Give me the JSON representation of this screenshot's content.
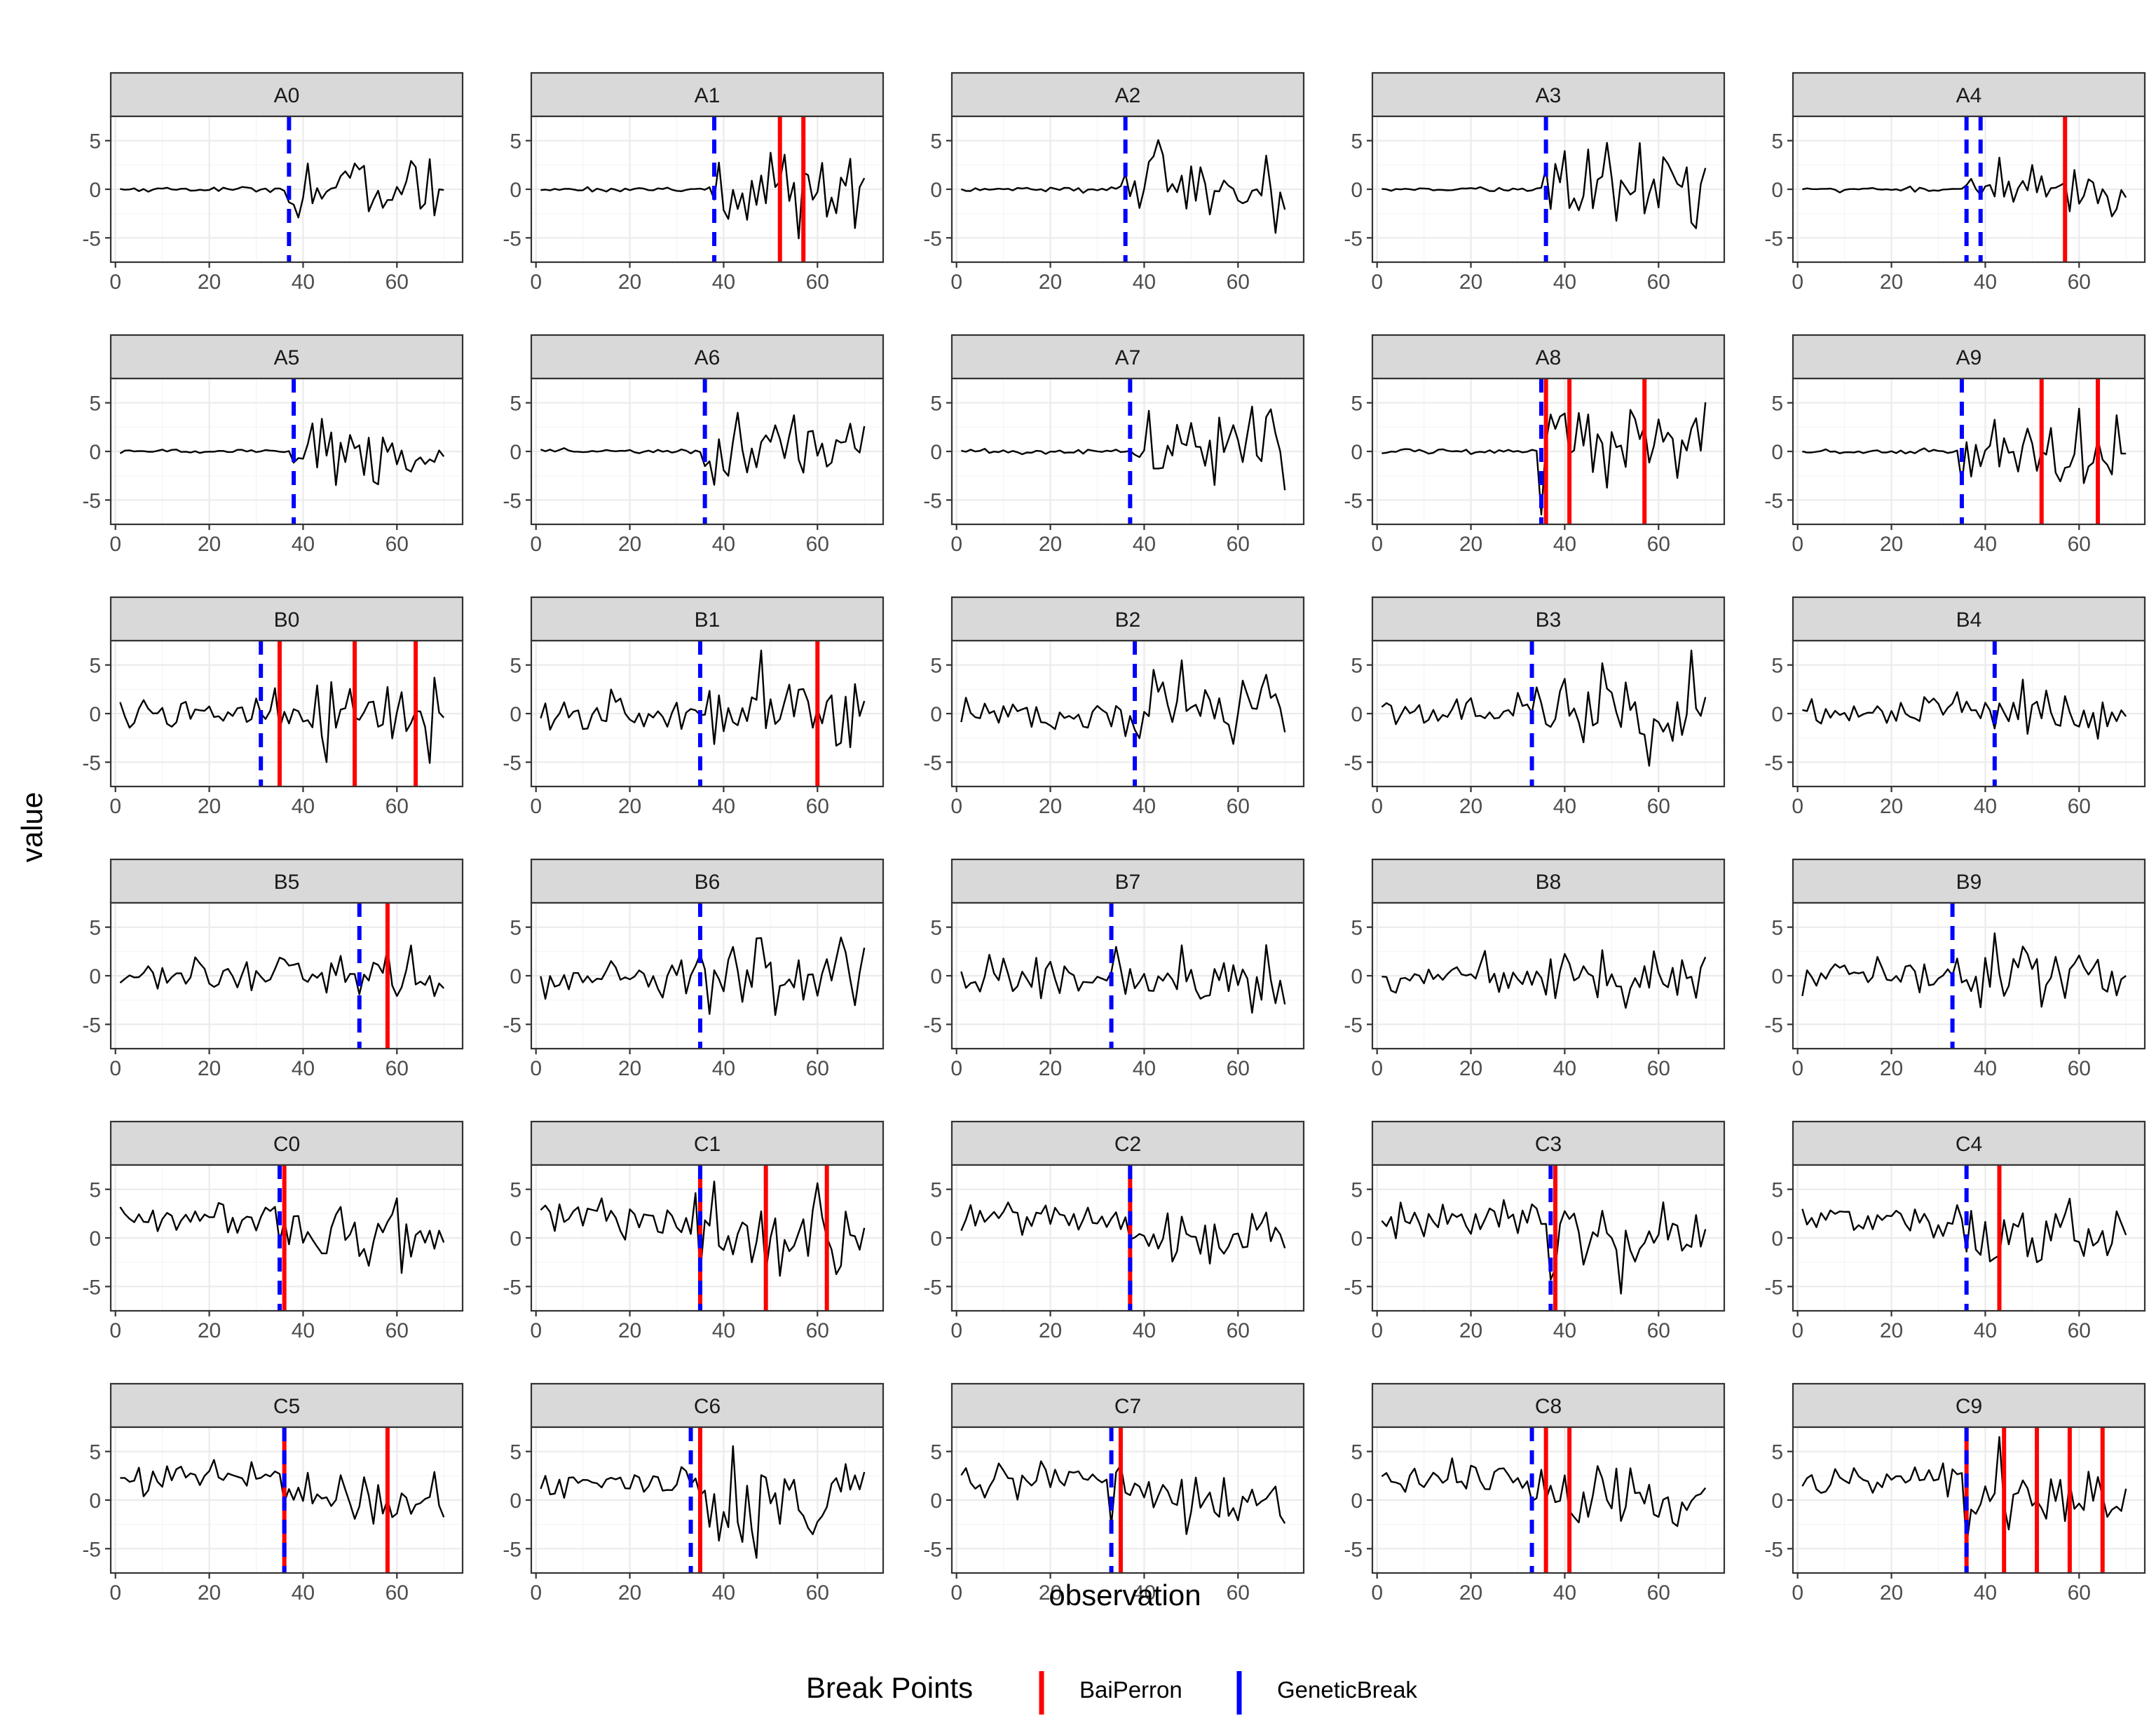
{
  "chart_data": {
    "type": "line",
    "layout": "facet_wrap",
    "facet_columns": 5,
    "xlabel": "observation",
    "ylabel": "value",
    "xlim": [
      -1,
      74
    ],
    "ylim": [
      -7.5,
      7.5
    ],
    "xticks": [
      0,
      20,
      40,
      60
    ],
    "yticks": [
      -5,
      0,
      5
    ],
    "legend": {
      "title": "Break Points",
      "position": "bottom",
      "entries": [
        {
          "name": "BaiPerron",
          "color": "#ff0000",
          "linetype": "solid"
        },
        {
          "name": "GeneticBreak",
          "color": "#0000ff",
          "linetype": "dashed"
        }
      ]
    },
    "panels": [
      {
        "name": "A0",
        "regime": "flat-then-volatile",
        "change": 37,
        "pre_sd": 0.12,
        "post_sd": 1.7,
        "baiperron": [],
        "geneticbreak": [
          37
        ]
      },
      {
        "name": "A1",
        "regime": "flat-then-volatile",
        "change": 38,
        "pre_sd": 0.12,
        "post_sd": 1.9,
        "baiperron": [
          52,
          57
        ],
        "geneticbreak": [
          38
        ]
      },
      {
        "name": "A2",
        "regime": "flat-then-volatile",
        "change": 36,
        "pre_sd": 0.12,
        "post_sd": 2.0,
        "baiperron": [],
        "geneticbreak": [
          36
        ]
      },
      {
        "name": "A3",
        "regime": "flat-then-volatile",
        "change": 36,
        "pre_sd": 0.12,
        "post_sd": 2.0,
        "baiperron": [],
        "geneticbreak": [
          36
        ]
      },
      {
        "name": "A4",
        "regime": "flat-then-volatile",
        "change": 36,
        "pre_sd": 0.12,
        "post_sd": 1.4,
        "baiperron": [
          57
        ],
        "geneticbreak": [
          36,
          39
        ]
      },
      {
        "name": "A5",
        "regime": "flat-then-volatile",
        "change": 38,
        "pre_sd": 0.12,
        "post_sd": 1.6,
        "baiperron": [],
        "geneticbreak": [
          38
        ]
      },
      {
        "name": "A6",
        "regime": "flat-then-volatile",
        "change": 36,
        "pre_sd": 0.12,
        "post_sd": 1.9,
        "baiperron": [],
        "geneticbreak": [
          36
        ]
      },
      {
        "name": "A7",
        "regime": "flat-then-volatile",
        "change": 37,
        "pre_sd": 0.12,
        "post_sd": 1.9,
        "baiperron": [],
        "geneticbreak": [
          37
        ]
      },
      {
        "name": "A8",
        "regime": "flat-then-volatile",
        "change": 35,
        "pre_sd": 0.12,
        "post_sd": 2.2,
        "baiperron": [
          36,
          41,
          57
        ],
        "geneticbreak": [
          35
        ]
      },
      {
        "name": "A9",
        "regime": "flat-then-volatile",
        "change": 35,
        "pre_sd": 0.12,
        "post_sd": 2.0,
        "baiperron": [
          52,
          64
        ],
        "geneticbreak": [
          35
        ]
      },
      {
        "name": "B0",
        "regime": "volatility-increase",
        "change": 31,
        "pre_sd": 0.9,
        "post_sd": 2.0,
        "baiperron": [
          35,
          51,
          64
        ],
        "geneticbreak": [
          31
        ]
      },
      {
        "name": "B1",
        "regime": "volatility-increase",
        "change": 35,
        "pre_sd": 0.9,
        "post_sd": 2.0,
        "baiperron": [
          60
        ],
        "geneticbreak": [
          35
        ]
      },
      {
        "name": "B2",
        "regime": "volatility-increase",
        "change": 38,
        "pre_sd": 1.0,
        "post_sd": 2.1,
        "baiperron": [],
        "geneticbreak": [
          38
        ]
      },
      {
        "name": "B3",
        "regime": "volatility-increase",
        "change": 33,
        "pre_sd": 0.9,
        "post_sd": 2.2,
        "baiperron": [],
        "geneticbreak": [
          33
        ]
      },
      {
        "name": "B4",
        "regime": "volatility-increase",
        "change": 42,
        "pre_sd": 0.9,
        "post_sd": 1.6,
        "baiperron": [],
        "geneticbreak": [
          42
        ]
      },
      {
        "name": "B5",
        "regime": "volatility-increase",
        "change": 52,
        "pre_sd": 1.0,
        "post_sd": 1.9,
        "baiperron": [
          58
        ],
        "geneticbreak": [
          52
        ]
      },
      {
        "name": "B6",
        "regime": "volatility-increase",
        "change": 35,
        "pre_sd": 0.9,
        "post_sd": 2.0,
        "baiperron": [],
        "geneticbreak": [
          35
        ]
      },
      {
        "name": "B7",
        "regime": "volatility-increase",
        "change": 33,
        "pre_sd": 0.9,
        "post_sd": 1.7,
        "baiperron": [],
        "geneticbreak": [
          33
        ]
      },
      {
        "name": "B8",
        "regime": "volatility-increase",
        "change": 35,
        "pre_sd": 0.9,
        "post_sd": 1.5,
        "baiperron": [],
        "geneticbreak": []
      },
      {
        "name": "B9",
        "regime": "volatility-increase",
        "change": 33,
        "pre_sd": 0.9,
        "post_sd": 1.8,
        "baiperron": [],
        "geneticbreak": [
          33
        ]
      },
      {
        "name": "C0",
        "regime": "mean-shift-down",
        "change": 35,
        "pre_mean": 2.0,
        "pre_sd": 0.8,
        "post_sd": 2.0,
        "baiperron": [
          36
        ],
        "geneticbreak": [
          35
        ]
      },
      {
        "name": "C1",
        "regime": "mean-shift-down",
        "change": 35,
        "pre_mean": 2.0,
        "pre_sd": 0.8,
        "post_sd": 1.8,
        "baiperron": [
          35,
          49,
          62
        ],
        "geneticbreak": [
          35
        ]
      },
      {
        "name": "C2",
        "regime": "mean-shift-down",
        "change": 37,
        "pre_mean": 2.0,
        "pre_sd": 0.8,
        "post_sd": 1.5,
        "baiperron": [
          37
        ],
        "geneticbreak": [
          37
        ]
      },
      {
        "name": "C3",
        "regime": "mean-shift-down",
        "change": 37,
        "pre_mean": 2.0,
        "pre_sd": 0.8,
        "post_sd": 2.0,
        "baiperron": [
          38
        ],
        "geneticbreak": [
          37
        ]
      },
      {
        "name": "C4",
        "regime": "mean-shift-down",
        "change": 36,
        "pre_mean": 2.0,
        "pre_sd": 0.7,
        "post_sd": 1.9,
        "baiperron": [
          43
        ],
        "geneticbreak": [
          36
        ]
      },
      {
        "name": "C5",
        "regime": "mean-shift-down",
        "change": 36,
        "pre_mean": 2.5,
        "pre_sd": 0.8,
        "post_sd": 2.0,
        "baiperron": [
          36,
          58
        ],
        "geneticbreak": [
          36
        ]
      },
      {
        "name": "C6",
        "regime": "mean-shift-down",
        "change": 33,
        "pre_mean": 2.0,
        "pre_sd": 0.8,
        "post_sd": 2.1,
        "baiperron": [
          35
        ],
        "geneticbreak": [
          33
        ]
      },
      {
        "name": "C7",
        "regime": "mean-shift-down",
        "change": 33,
        "pre_mean": 2.0,
        "pre_sd": 0.9,
        "post_sd": 1.8,
        "baiperron": [
          35
        ],
        "geneticbreak": [
          33
        ]
      },
      {
        "name": "C8",
        "regime": "mean-shift-down",
        "change": 33,
        "pre_mean": 2.0,
        "pre_sd": 0.7,
        "post_sd": 2.0,
        "baiperron": [
          36,
          41
        ],
        "geneticbreak": [
          33
        ]
      },
      {
        "name": "C9",
        "regime": "mean-shift-down",
        "change": 36,
        "pre_mean": 2.0,
        "pre_sd": 0.8,
        "post_sd": 1.9,
        "baiperron": [
          36,
          44,
          51,
          58,
          65
        ],
        "geneticbreak": [
          36
        ]
      }
    ]
  }
}
